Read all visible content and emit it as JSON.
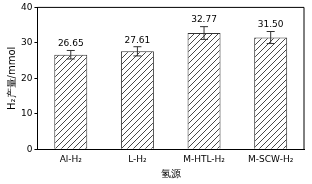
{
  "chart_data": {
    "type": "bar",
    "x_label": "氢源",
    "y_label": "H₂产量/mmol",
    "categories": [
      "Al-H₂",
      "L-H₂",
      "M-HTL-H₂",
      "M-SCW-H₂"
    ],
    "values": [
      26.65,
      27.61,
      32.77,
      31.5
    ],
    "value_labels": [
      "26.65",
      "27.61",
      "32.77",
      "31.50"
    ],
    "errors": [
      1.2,
      1.3,
      1.8,
      1.7
    ],
    "color": "#333333",
    "ylim": [
      0,
      40
    ],
    "yticks": [
      0,
      10,
      20,
      30,
      40
    ],
    "grid": false,
    "data_labels": true
  }
}
